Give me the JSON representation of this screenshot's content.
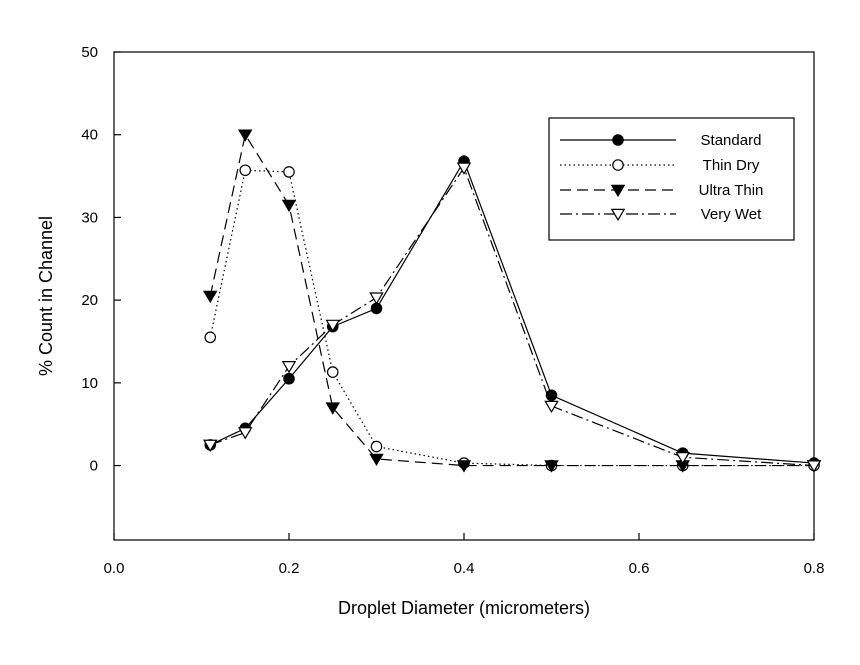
{
  "chart_data": {
    "type": "line",
    "title": "",
    "xlabel": "Droplet Diameter (micrometers)",
    "ylabel": "% Count in Channel",
    "xlim": [
      0.0,
      0.8
    ],
    "ylim": [
      -9,
      50
    ],
    "x_ticks": [
      0.0,
      0.2,
      0.4,
      0.6,
      0.8
    ],
    "x_tick_labels": [
      "0.0",
      "0.2",
      "0.4",
      "0.6",
      "0.8"
    ],
    "y_ticks": [
      0,
      10,
      20,
      30,
      40,
      50
    ],
    "y_tick_labels": [
      "0",
      "10",
      "20",
      "30",
      "40",
      "50"
    ],
    "grid": false,
    "legend_position": "top-right",
    "series": [
      {
        "name": "Standard",
        "marker": "filled-circle",
        "line_style": "solid",
        "x": [
          0.11,
          0.15,
          0.2,
          0.25,
          0.3,
          0.4,
          0.5,
          0.65,
          0.8
        ],
        "y": [
          2.5,
          4.5,
          10.5,
          16.8,
          19.0,
          36.8,
          8.5,
          1.5,
          0.3
        ]
      },
      {
        "name": "Thin Dry",
        "marker": "open-circle",
        "line_style": "dotted",
        "x": [
          0.11,
          0.15,
          0.2,
          0.25,
          0.3,
          0.4,
          0.5,
          0.65,
          0.8
        ],
        "y": [
          15.5,
          35.7,
          35.5,
          11.3,
          2.3,
          0.3,
          0.0,
          0.0,
          0.0
        ]
      },
      {
        "name": "Ultra Thin",
        "marker": "filled-triangle-down",
        "line_style": "dashed",
        "x": [
          0.11,
          0.15,
          0.2,
          0.25,
          0.3,
          0.4,
          0.5,
          0.65,
          0.8
        ],
        "y": [
          20.5,
          40.0,
          31.5,
          7.0,
          0.8,
          0.0,
          0.0,
          0.0,
          0.0
        ]
      },
      {
        "name": "Very Wet",
        "marker": "open-triangle-down",
        "line_style": "dash-dot",
        "x": [
          0.11,
          0.15,
          0.2,
          0.25,
          0.3,
          0.4,
          0.5,
          0.65,
          0.8
        ],
        "y": [
          2.5,
          4.0,
          12.0,
          17.0,
          20.3,
          36.0,
          7.2,
          1.0,
          0.0
        ]
      }
    ]
  }
}
